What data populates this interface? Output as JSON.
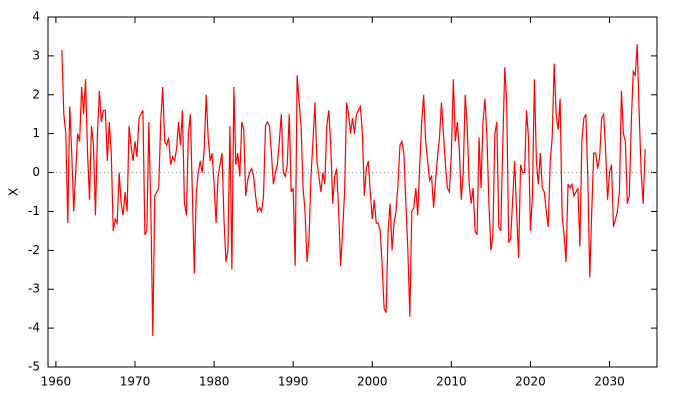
{
  "chart_data": {
    "type": "line",
    "ylabel": "X",
    "color": "#ff0000",
    "zero_line": true,
    "xlim": [
      1959,
      2036
    ],
    "xticks": [
      1960,
      1970,
      1980,
      1990,
      2000,
      2010,
      2020,
      2030
    ],
    "ylim": [
      -5,
      4
    ],
    "yticks": [
      -5,
      -4,
      -3,
      -2,
      -1,
      0,
      1,
      2,
      3,
      4
    ],
    "x": [
      1960.75,
      1961,
      1961.25,
      1961.5,
      1961.75,
      1962,
      1962.25,
      1962.5,
      1962.75,
      1963,
      1963.25,
      1963.5,
      1963.75,
      1964,
      1964.25,
      1964.5,
      1964.75,
      1965,
      1965.25,
      1965.5,
      1965.75,
      1966,
      1966.25,
      1966.5,
      1966.75,
      1967,
      1967.25,
      1967.5,
      1967.75,
      1968,
      1968.25,
      1968.5,
      1968.75,
      1969,
      1969.25,
      1969.5,
      1969.75,
      1970,
      1970.25,
      1970.5,
      1970.75,
      1971,
      1971.25,
      1971.5,
      1971.75,
      1972,
      1972.25,
      1972.5,
      1972.75,
      1973,
      1973.25,
      1973.5,
      1973.75,
      1974,
      1974.25,
      1974.5,
      1974.75,
      1975,
      1975.25,
      1975.5,
      1975.75,
      1976,
      1976.25,
      1976.5,
      1976.75,
      1977,
      1977.25,
      1977.5,
      1977.75,
      1978,
      1978.25,
      1978.5,
      1978.75,
      1979,
      1979.25,
      1979.5,
      1979.75,
      1980,
      1980.25,
      1980.5,
      1980.75,
      1981,
      1981.25,
      1981.5,
      1981.75,
      1982,
      1982.25,
      1982.5,
      1982.75,
      1983,
      1983.25,
      1983.5,
      1983.75,
      1984,
      1984.25,
      1984.5,
      1984.75,
      1985,
      1985.25,
      1985.5,
      1985.75,
      1986,
      1986.25,
      1986.5,
      1986.75,
      1987,
      1987.25,
      1987.5,
      1987.75,
      1988,
      1988.25,
      1988.5,
      1988.75,
      1989,
      1989.25,
      1989.5,
      1989.75,
      1990,
      1990.25,
      1990.5,
      1990.75,
      1991,
      1991.25,
      1991.5,
      1991.75,
      1992,
      1992.25,
      1992.5,
      1992.75,
      1993,
      1993.25,
      1993.5,
      1993.75,
      1994,
      1994.25,
      1994.5,
      1994.75,
      1995,
      1995.25,
      1995.5,
      1995.75,
      1996,
      1996.25,
      1996.5,
      1996.75,
      1997,
      1997.25,
      1997.5,
      1997.75,
      1998,
      1998.25,
      1998.5,
      1998.75,
      1999,
      1999.25,
      1999.5,
      1999.75,
      2000,
      2000.25,
      2000.5,
      2000.75,
      2001,
      2001.25,
      2001.5,
      2001.75,
      2002,
      2002.25,
      2002.5,
      2002.75,
      2003,
      2003.25,
      2003.5,
      2003.75,
      2004,
      2004.25,
      2004.5,
      2004.75,
      2005,
      2005.25,
      2005.5,
      2005.75,
      2006,
      2006.25,
      2006.5,
      2006.75,
      2007,
      2007.25,
      2007.5,
      2007.75,
      2008,
      2008.25,
      2008.5,
      2008.75,
      2009,
      2009.25,
      2009.5,
      2009.75,
      2010,
      2010.25,
      2010.5,
      2010.75,
      2011,
      2011.25,
      2011.5,
      2011.75,
      2012,
      2012.25,
      2012.5,
      2012.75,
      2013,
      2013.25,
      2013.5,
      2013.75,
      2014,
      2014.25,
      2014.5,
      2014.75,
      2015,
      2015.25,
      2015.5,
      2015.75,
      2016,
      2016.25,
      2016.5,
      2016.75,
      2017,
      2017.25,
      2017.5,
      2017.75,
      2018,
      2018.25,
      2018.5,
      2018.75,
      2019,
      2019.25,
      2019.5,
      2019.75,
      2020,
      2020.25,
      2020.5,
      2020.75,
      2021,
      2021.25,
      2021.5,
      2021.75,
      2022,
      2022.25,
      2022.5,
      2022.75,
      2023,
      2023.25,
      2023.5,
      2023.75,
      2024,
      2024.25,
      2024.5,
      2024.75,
      2025,
      2025.25,
      2025.5,
      2025.75,
      2026,
      2026.25,
      2026.5,
      2026.75,
      2027,
      2027.25,
      2027.5,
      2027.75,
      2028,
      2028.25,
      2028.5,
      2028.75,
      2029,
      2029.25,
      2029.5,
      2029.75,
      2030,
      2030.25,
      2030.5,
      2030.75,
      2031,
      2031.25,
      2031.5,
      2031.75,
      2032,
      2032.25,
      2032.5,
      2032.75,
      2033,
      2033.25,
      2033.5,
      2033.75,
      2034,
      2034.25,
      2034.5
    ],
    "values": [
      3.15,
      1.5,
      1.0,
      -1.3,
      1.7,
      0.5,
      -1.0,
      0.0,
      1.0,
      0.8,
      2.2,
      1.5,
      2.4,
      0.5,
      -0.7,
      1.2,
      0.7,
      -1.1,
      1.0,
      2.1,
      1.3,
      1.6,
      1.6,
      0.3,
      1.3,
      0.5,
      -1.5,
      -1.2,
      -1.3,
      0.0,
      -0.8,
      -1.1,
      -0.5,
      -1.0,
      1.2,
      0.7,
      0.3,
      0.8,
      0.4,
      1.4,
      1.5,
      1.6,
      -1.6,
      -1.5,
      1.3,
      -0.9,
      -4.2,
      -0.6,
      -0.5,
      -0.4,
      1.3,
      2.2,
      0.8,
      0.7,
      0.9,
      0.2,
      0.4,
      0.3,
      0.6,
      1.3,
      0.7,
      1.6,
      -0.8,
      -1.1,
      1.0,
      1.5,
      -0.5,
      -2.6,
      -0.5,
      0.0,
      0.3,
      0.0,
      0.6,
      2.0,
      0.9,
      0.3,
      0.5,
      -0.3,
      -1.3,
      -0.1,
      0.2,
      0.5,
      -1.2,
      -2.3,
      -2.0,
      1.2,
      -2.5,
      2.2,
      0.2,
      0.5,
      -0.1,
      1.3,
      1.1,
      -0.6,
      -0.2,
      0.0,
      0.1,
      -0.1,
      -0.6,
      -1.0,
      -0.9,
      -1.0,
      -0.6,
      1.2,
      1.3,
      1.2,
      0.5,
      -0.3,
      0.0,
      0.2,
      0.8,
      1.5,
      0.0,
      -0.1,
      0.2,
      1.5,
      -0.5,
      -0.4,
      -2.4,
      2.5,
      1.8,
      1.2,
      -0.4,
      -1.0,
      -2.3,
      -1.7,
      -0.1,
      0.8,
      1.8,
      0.3,
      -0.1,
      -0.5,
      0.0,
      -0.3,
      1.2,
      1.6,
      0.7,
      -0.8,
      -0.1,
      0.1,
      -1.0,
      -2.4,
      -1.5,
      -0.5,
      1.8,
      1.5,
      1.0,
      1.4,
      1.0,
      1.5,
      1.6,
      1.7,
      1.0,
      -0.6,
      0.1,
      0.3,
      -0.5,
      -1.2,
      -0.7,
      -1.3,
      -1.3,
      -1.5,
      -2.4,
      -3.5,
      -3.6,
      -1.5,
      -0.8,
      -2.0,
      -1.3,
      -1.0,
      -0.3,
      0.7,
      0.8,
      0.5,
      -0.8,
      -2.0,
      -3.7,
      -1.0,
      -0.9,
      -0.4,
      -1.1,
      0.2,
      1.3,
      2.0,
      0.8,
      0.3,
      -0.2,
      -0.1,
      -0.9,
      -0.2,
      0.4,
      0.9,
      1.8,
      1.0,
      0.2,
      -0.4,
      -0.5,
      0.5,
      2.4,
      0.8,
      1.3,
      0.6,
      -0.7,
      0.0,
      2.0,
      1.2,
      -0.3,
      -0.8,
      -0.4,
      -1.5,
      -1.6,
      0.9,
      -0.4,
      1.3,
      1.9,
      0.9,
      -0.8,
      -2.0,
      -1.6,
      1.0,
      1.3,
      -1.4,
      -1.5,
      0.7,
      2.7,
      1.8,
      -1.8,
      -1.7,
      -0.7,
      0.3,
      -1.0,
      -2.2,
      0.2,
      0.0,
      0.0,
      1.6,
      0.9,
      -1.5,
      -0.6,
      2.4,
      0.3,
      -0.3,
      0.5,
      -0.4,
      -0.5,
      -1.0,
      -1.4,
      0.3,
      0.9,
      2.8,
      1.5,
      1.1,
      1.9,
      -1.1,
      -1.6,
      -2.3,
      -0.3,
      -0.4,
      -0.3,
      -0.6,
      -0.5,
      -0.4,
      -1.9,
      0.8,
      1.4,
      1.5,
      -0.1,
      -2.7,
      -1.0,
      0.5,
      0.5,
      0.1,
      0.4,
      1.4,
      1.5,
      0.6,
      -0.7,
      0.0,
      0.2,
      -1.4,
      -1.2,
      -1.0,
      -0.5,
      2.1,
      1.0,
      0.8,
      -0.8,
      -0.6,
      1.3,
      2.6,
      2.5,
      3.3,
      1.5,
      0.0,
      -0.8,
      0.6
    ]
  }
}
